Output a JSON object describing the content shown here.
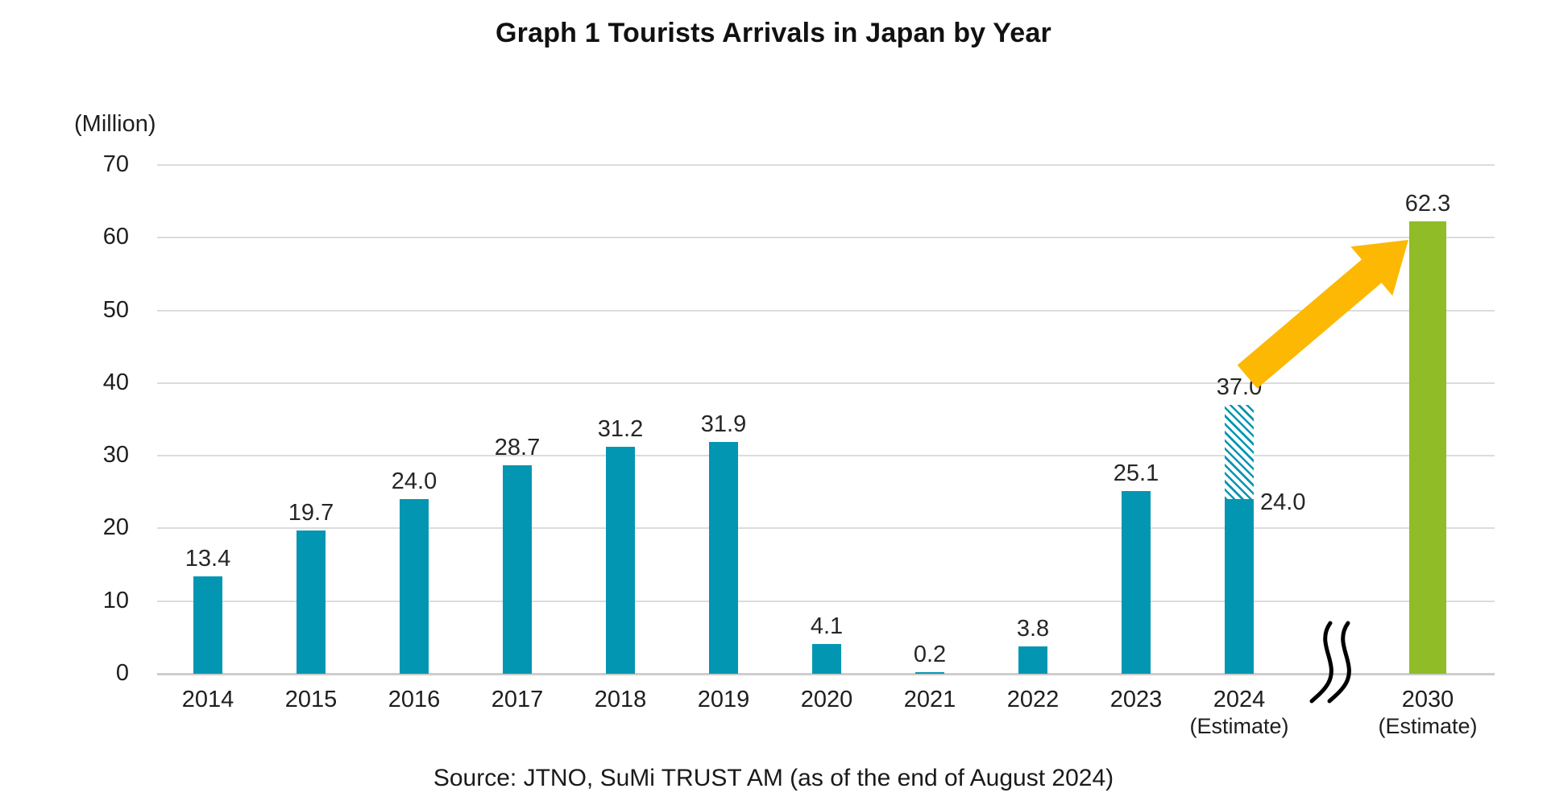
{
  "source": "Source: JTNO, SuMi TRUST AM (as of the end of August 2024)",
  "chart_data": {
    "type": "bar",
    "title": "Graph 1 Tourists Arrivals in Japan by Year",
    "unit_label": "(Million)",
    "xlabel": "",
    "ylabel": "(Million)",
    "ylim": [
      0,
      70
    ],
    "yticks": [
      0,
      10,
      20,
      30,
      40,
      50,
      60,
      70
    ],
    "grid": true,
    "legend": "none",
    "bars": [
      {
        "category": "2014",
        "value": 13.4,
        "label": "13.4",
        "type": "actual"
      },
      {
        "category": "2015",
        "value": 19.7,
        "label": "19.7",
        "type": "actual"
      },
      {
        "category": "2016",
        "value": 24.0,
        "label": "24.0",
        "type": "actual"
      },
      {
        "category": "2017",
        "value": 28.7,
        "label": "28.7",
        "type": "actual"
      },
      {
        "category": "2018",
        "value": 31.2,
        "label": "31.2",
        "type": "actual"
      },
      {
        "category": "2019",
        "value": 31.9,
        "label": "31.9",
        "type": "actual"
      },
      {
        "category": "2020",
        "value": 4.1,
        "label": "4.1",
        "type": "actual"
      },
      {
        "category": "2021",
        "value": 0.2,
        "label": "0.2",
        "type": "actual"
      },
      {
        "category": "2022",
        "value": 3.8,
        "label": "3.8",
        "type": "actual"
      },
      {
        "category": "2023",
        "value": 25.1,
        "label": "25.1",
        "type": "actual"
      },
      {
        "category": "2024",
        "sublabel": "(Estimate)",
        "value": 24.0,
        "label": "24.0",
        "hatched_value": 37.0,
        "hatched_label": "37.0",
        "type": "estimate-split"
      },
      {
        "category": "2030",
        "sublabel": "(Estimate)",
        "value": 62.3,
        "label": "62.3",
        "type": "estimate-green"
      }
    ],
    "axis_break_between": [
      "2024",
      "2030"
    ],
    "annotations": [
      {
        "name": "growth-arrow",
        "shape": "arrow",
        "direction": "up-right",
        "color": "#FCB802"
      }
    ]
  },
  "colors": {
    "bar_actual_teal": "#0396B2",
    "bar_estimate_green": "#8FBC27",
    "arrow_yellow": "#FCB802",
    "gridline": "#DCDCDC",
    "axis_line": "#CDCDCD",
    "text": "#1E1E1E"
  }
}
